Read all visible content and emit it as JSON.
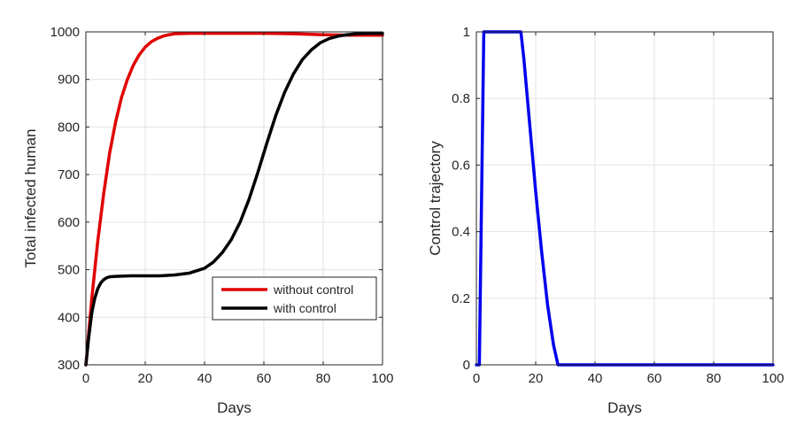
{
  "chart_data": [
    {
      "type": "line",
      "xlabel": "Days",
      "ylabel": "Total infected human",
      "xlim": [
        0,
        100
      ],
      "ylim": [
        300,
        1000
      ],
      "xticks": [
        0,
        20,
        40,
        60,
        80,
        100
      ],
      "yticks": [
        300,
        400,
        500,
        600,
        700,
        800,
        900,
        1000
      ],
      "grid": true,
      "legend_position": "lower-right",
      "series": [
        {
          "name": "without control",
          "color": "#e00000",
          "x": [
            0,
            2,
            4,
            6,
            8,
            10,
            12,
            14,
            16,
            18,
            20,
            22,
            24,
            26,
            28,
            30,
            35,
            40,
            50,
            60,
            70,
            80,
            90,
            100
          ],
          "y": [
            300,
            440,
            560,
            660,
            745,
            810,
            862,
            900,
            930,
            952,
            968,
            979,
            986,
            991,
            994,
            996,
            997,
            997,
            997,
            997,
            996,
            994,
            993,
            993
          ]
        },
        {
          "name": "with control",
          "color": "#000000",
          "x": [
            0,
            1,
            2,
            3,
            4,
            5,
            6,
            7,
            8,
            10,
            15,
            20,
            25,
            30,
            35,
            40,
            43,
            46,
            49,
            52,
            55,
            58,
            61,
            64,
            67,
            70,
            73,
            76,
            79,
            82,
            85,
            88,
            91,
            95,
            100
          ],
          "y": [
            300,
            360,
            410,
            440,
            460,
            472,
            479,
            483,
            485,
            486,
            487,
            487,
            487,
            489,
            493,
            503,
            516,
            536,
            563,
            600,
            648,
            705,
            766,
            824,
            873,
            912,
            942,
            962,
            977,
            986,
            991,
            994,
            996,
            997,
            997
          ]
        }
      ]
    },
    {
      "type": "line",
      "xlabel": "Days",
      "ylabel": "Control trajectory",
      "xlim": [
        0,
        100
      ],
      "ylim": [
        0,
        1
      ],
      "xticks": [
        0,
        20,
        40,
        60,
        80,
        100
      ],
      "yticks": [
        0,
        0.2,
        0.4,
        0.6,
        0.8,
        1
      ],
      "grid": true,
      "series": [
        {
          "color": "#0000ee",
          "x": [
            0,
            1,
            2.5,
            5,
            10,
            15,
            16,
            18,
            20,
            22,
            24,
            26,
            27.5,
            30,
            40,
            60,
            80,
            100
          ],
          "y": [
            0,
            0,
            1,
            1,
            1,
            1,
            0.92,
            0.72,
            0.52,
            0.34,
            0.18,
            0.06,
            0,
            0,
            0,
            0,
            0,
            0
          ]
        }
      ]
    }
  ]
}
